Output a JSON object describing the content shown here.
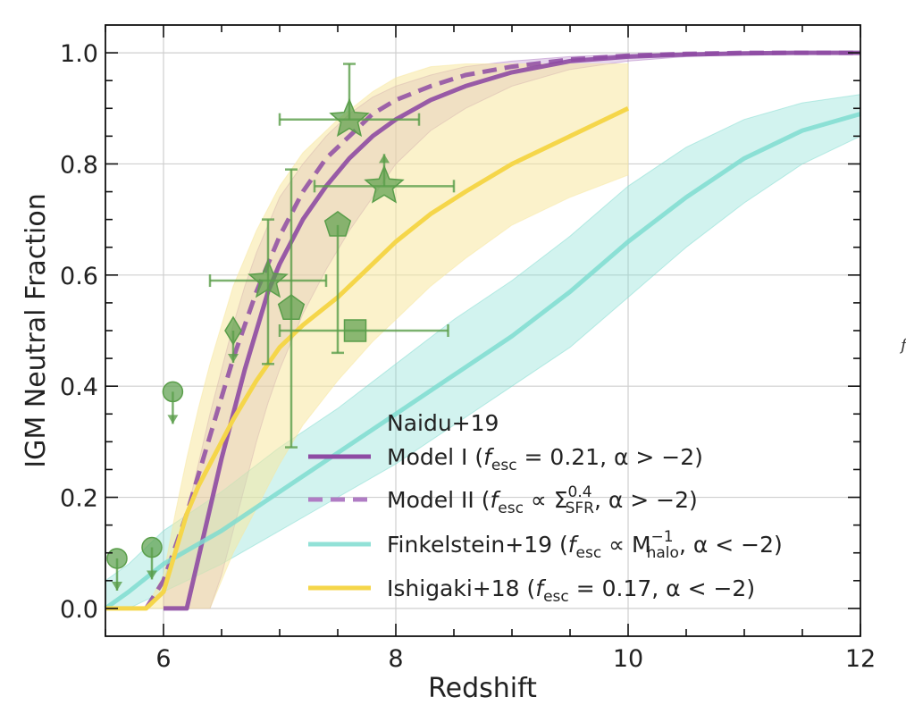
{
  "chart_data": {
    "type": "line",
    "xlabel": "Redshift",
    "ylabel": "IGM Neutral Fraction",
    "xlim": [
      5.5,
      12
    ],
    "ylim": [
      -0.05,
      1.05
    ],
    "xticks": [
      6,
      8,
      10,
      12
    ],
    "xtick_labels": [
      "6",
      "8",
      "10",
      "12"
    ],
    "yticks": [
      0.0,
      0.2,
      0.4,
      0.6,
      0.8,
      1.0
    ],
    "ytick_labels": [
      "0.0",
      "0.2",
      "0.4",
      "0.6",
      "0.8",
      "1.0"
    ],
    "grid": true,
    "edge_glyph": "f",
    "colors": {
      "naidu": "#8e4ba3",
      "naidu_band": "#b07cc4",
      "finkelstein": "#7fdcd0",
      "ishigaki": "#f5d64a",
      "ishigaki_band": "#f8e8a0",
      "obs": "#5a9e4a"
    },
    "legend": {
      "title": "Naidu+19",
      "position": "lower-right",
      "entries": [
        {
          "label_main": "Model I (",
          "math": "f",
          "sub": "esc",
          "rest": " = 0.21, α > −2)",
          "style": "solid",
          "color_key": "naidu"
        },
        {
          "label_main": "Model II (",
          "math": "f",
          "sub": "esc",
          "rest2a": " ∝ Σ",
          "sup2": "0.4",
          "sub2": "SFR",
          "rest": ", α > −2)",
          "style": "dashed",
          "color_key": "naidu_band"
        },
        {
          "label_main": "Finkelstein+19 (",
          "math": "f",
          "sub": "esc",
          "rest2a": " ∝ M",
          "sup2": "−1",
          "sub2": "halo",
          "rest": ", α < −2)",
          "style": "solid",
          "color_key": "finkelstein"
        },
        {
          "label_main": "Ishigaki+18 (",
          "math": "f",
          "sub": "esc",
          "rest": " = 0.17, α < −2)",
          "style": "solid",
          "color_key": "ishigaki"
        }
      ]
    },
    "series": [
      {
        "name": "Model I",
        "style": "solid",
        "x": [
          6.0,
          6.2,
          6.3,
          6.4,
          6.5,
          6.6,
          6.7,
          6.8,
          6.9,
          7.0,
          7.2,
          7.4,
          7.6,
          7.8,
          8.0,
          8.3,
          8.6,
          9.0,
          9.5,
          10.0,
          10.5,
          11.0,
          11.5,
          12.0
        ],
        "y": [
          0.0,
          0.0,
          0.09,
          0.18,
          0.27,
          0.35,
          0.43,
          0.5,
          0.57,
          0.62,
          0.7,
          0.76,
          0.81,
          0.85,
          0.88,
          0.915,
          0.94,
          0.965,
          0.985,
          0.993,
          0.997,
          0.999,
          1.0,
          1.0
        ],
        "band_lower": [
          0.0,
          0.0,
          0.0,
          0.0,
          0.06,
          0.14,
          0.22,
          0.3,
          0.37,
          0.43,
          0.53,
          0.61,
          0.68,
          0.74,
          0.8,
          0.86,
          0.9,
          0.94,
          0.97,
          0.985,
          0.993,
          0.997,
          0.999,
          1.0
        ],
        "band_upper": [
          0.05,
          0.17,
          0.26,
          0.35,
          0.43,
          0.51,
          0.58,
          0.64,
          0.69,
          0.74,
          0.8,
          0.85,
          0.89,
          0.92,
          0.94,
          0.96,
          0.975,
          0.985,
          0.993,
          0.997,
          0.999,
          1.0,
          1.0,
          1.0
        ]
      },
      {
        "name": "Model II",
        "style": "dashed",
        "x": [
          5.85,
          6.0,
          6.1,
          6.2,
          6.3,
          6.4,
          6.5,
          6.6,
          6.7,
          6.8,
          6.9,
          7.0,
          7.2,
          7.4,
          7.6,
          7.8,
          8.0,
          8.3,
          8.6,
          9.0,
          9.5,
          10.0,
          10.5,
          11.0,
          12.0
        ],
        "y": [
          0.0,
          0.05,
          0.11,
          0.17,
          0.24,
          0.31,
          0.38,
          0.45,
          0.51,
          0.57,
          0.62,
          0.67,
          0.75,
          0.81,
          0.85,
          0.89,
          0.915,
          0.94,
          0.96,
          0.975,
          0.988,
          0.995,
          0.998,
          1.0,
          1.0
        ]
      },
      {
        "name": "Finkelstein+19",
        "style": "solid",
        "x": [
          5.5,
          5.7,
          6.0,
          6.5,
          7.0,
          7.5,
          8.0,
          8.5,
          9.0,
          9.5,
          10.0,
          10.5,
          11.0,
          11.5,
          12.0
        ],
        "y": [
          0.0,
          0.03,
          0.08,
          0.14,
          0.21,
          0.28,
          0.35,
          0.42,
          0.49,
          0.57,
          0.66,
          0.74,
          0.81,
          0.86,
          0.89
        ],
        "band_lower": [
          0.0,
          0.0,
          0.03,
          0.08,
          0.14,
          0.2,
          0.26,
          0.33,
          0.4,
          0.47,
          0.56,
          0.65,
          0.73,
          0.8,
          0.85
        ],
        "band_upper": [
          0.05,
          0.08,
          0.14,
          0.21,
          0.29,
          0.36,
          0.44,
          0.52,
          0.59,
          0.67,
          0.76,
          0.83,
          0.88,
          0.91,
          0.925
        ]
      },
      {
        "name": "Ishigaki+18",
        "style": "solid",
        "x": [
          5.5,
          5.85,
          6.0,
          6.1,
          6.2,
          6.3,
          6.4,
          6.5,
          6.6,
          6.8,
          7.0,
          7.2,
          7.5,
          7.8,
          8.0,
          8.3,
          8.6,
          9.0,
          9.5,
          10.0
        ],
        "y": [
          0.0,
          0.0,
          0.03,
          0.1,
          0.17,
          0.22,
          0.26,
          0.3,
          0.34,
          0.41,
          0.47,
          0.51,
          0.56,
          0.62,
          0.66,
          0.71,
          0.75,
          0.8,
          0.85,
          0.9
        ],
        "band_lower": [
          0.0,
          0.0,
          0.0,
          0.0,
          0.0,
          0.0,
          0.0,
          0.05,
          0.1,
          0.18,
          0.26,
          0.33,
          0.41,
          0.48,
          0.52,
          0.58,
          0.63,
          0.69,
          0.74,
          0.78
        ],
        "band_upper": [
          0.0,
          0.0,
          0.06,
          0.17,
          0.27,
          0.36,
          0.44,
          0.51,
          0.58,
          0.68,
          0.76,
          0.82,
          0.88,
          0.93,
          0.955,
          0.975,
          0.98,
          0.98,
          0.98,
          0.98
        ]
      }
    ],
    "observations": [
      {
        "marker": "circle",
        "x": 5.6,
        "y": 0.09,
        "upper_limit": true
      },
      {
        "marker": "circle",
        "x": 5.9,
        "y": 0.11,
        "upper_limit": true
      },
      {
        "marker": "circle",
        "x": 6.08,
        "y": 0.39,
        "upper_limit": true
      },
      {
        "marker": "diamond",
        "x": 6.6,
        "y": 0.5,
        "upper_limit": true
      },
      {
        "marker": "star",
        "x": 6.9,
        "y": 0.59,
        "xerr": [
          0.5,
          0.5
        ],
        "yerr": [
          0.15,
          0.11
        ]
      },
      {
        "marker": "pentagon",
        "x": 7.1,
        "y": 0.54,
        "yerr": [
          0.25,
          0.25
        ]
      },
      {
        "marker": "pentagon",
        "x": 7.5,
        "y": 0.69,
        "yerr": [
          0.23,
          0.0
        ]
      },
      {
        "marker": "square",
        "x": 7.65,
        "y": 0.5,
        "xerr": [
          0.65,
          0.8
        ]
      },
      {
        "marker": "star",
        "x": 7.6,
        "y": 0.88,
        "xerr": [
          0.6,
          0.6
        ],
        "yerr": [
          0.0,
          0.1
        ]
      },
      {
        "marker": "star",
        "x": 7.9,
        "y": 0.76,
        "xerr": [
          0.6,
          0.6
        ],
        "lower_limit": true
      }
    ]
  }
}
